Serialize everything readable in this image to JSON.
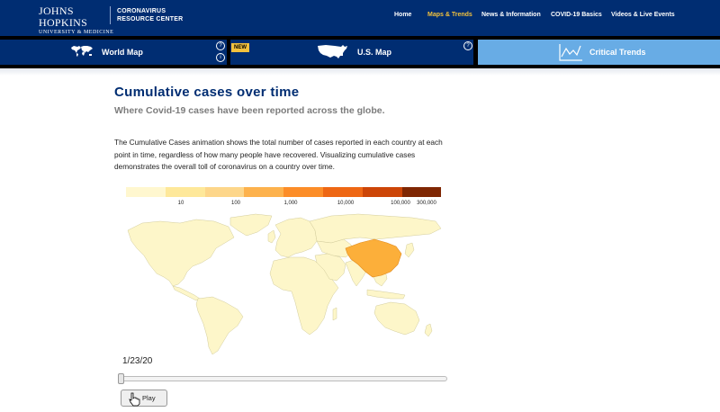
{
  "header": {
    "logo_line1": "JOHNS HOPKINS",
    "logo_line2": "UNIVERSITY & MEDICINE",
    "site_line1": "CORONAVIRUS",
    "site_line2": "RESOURCE CENTER",
    "nav": [
      "Home",
      "Maps & Trends",
      "News & Information",
      "COVID-19 Basics",
      "Videos & Live Events"
    ],
    "active_nav_index": 1,
    "colors": {
      "bg": "#002d72",
      "active": "#f2c13d"
    }
  },
  "tabs": [
    {
      "label": "World Map",
      "icon": "world-map-icon",
      "badge": ""
    },
    {
      "label": "U.S. Map",
      "icon": "us-map-icon",
      "badge": "NEW"
    },
    {
      "label": "Critical Trends",
      "icon": "trend-chart-icon",
      "badge": ""
    }
  ],
  "selected_tab_index": 2,
  "main": {
    "title": "Cumulative cases over time",
    "subtitle": "Where Covid-19 cases have been reported across the globe.",
    "description": "The Cumulative Cases animation shows the total number of cases reported in each country at each point in time, regardless of how many people have recovered. Visualizing cumulative cases demonstrates the overall toll of coronavirus on a country over time."
  },
  "legend": {
    "colors": [
      "#fff7cf",
      "#fee89a",
      "#fdd68a",
      "#fdb24d",
      "#fc8d28",
      "#ee6714",
      "#cc4507",
      "#7f2703"
    ],
    "ticks": [
      "10",
      "100",
      "1,000",
      "10,000",
      "100,000",
      "300,000"
    ]
  },
  "map": {
    "default_fill": "#fdf6c9",
    "highlighted_country": "China",
    "highlight_fill": "#fcaf3a"
  },
  "timeline": {
    "date": "1/23/20",
    "progress": 0,
    "play_label": "Play"
  }
}
